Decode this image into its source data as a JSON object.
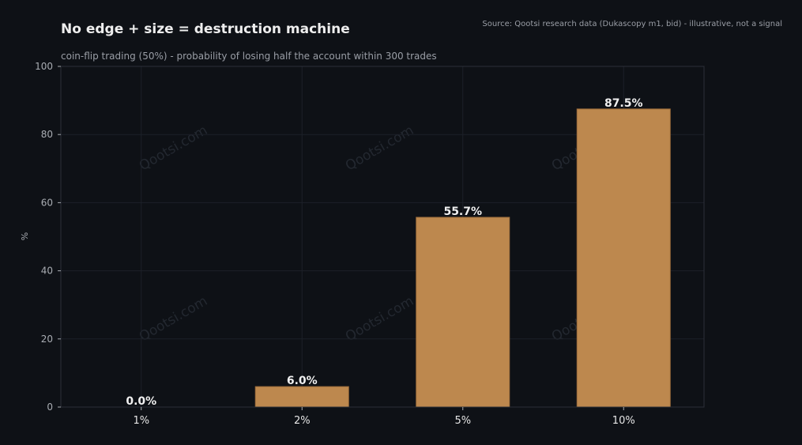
{
  "chart_data": {
    "type": "bar",
    "title": "No edge + size = destruction machine",
    "subtitle": "coin-flip trading (50%) - probability of losing half the account within 300 trades",
    "source": "Source: Qootsi research data (Dukascopy m1, bid) - illustrative, not a signal",
    "xlabel": "",
    "ylabel": "%",
    "categories": [
      "1%",
      "2%",
      "5%",
      "10%"
    ],
    "values": [
      0.0,
      6.0,
      55.7,
      87.5
    ],
    "data_labels": [
      "0.0%",
      "6.0%",
      "55.7%",
      "87.5%"
    ],
    "ylim": [
      0,
      100
    ],
    "yticks": [
      0,
      20,
      40,
      60,
      80,
      100
    ],
    "grid": true,
    "watermark": "Qootsi.com"
  },
  "colors": {
    "background": "#0e1116",
    "bar": "#bd884e",
    "bar_edge": "#9c6c3b",
    "title": "#eeeeee",
    "subtitle": "#9a9ea6",
    "tick_label": "#a9adb3",
    "x_tick_label": "#e6e6e6",
    "data_label": "#f0f0f0",
    "grid": "#1c2028",
    "frame": "#2c3038",
    "watermark": "#232830"
  }
}
